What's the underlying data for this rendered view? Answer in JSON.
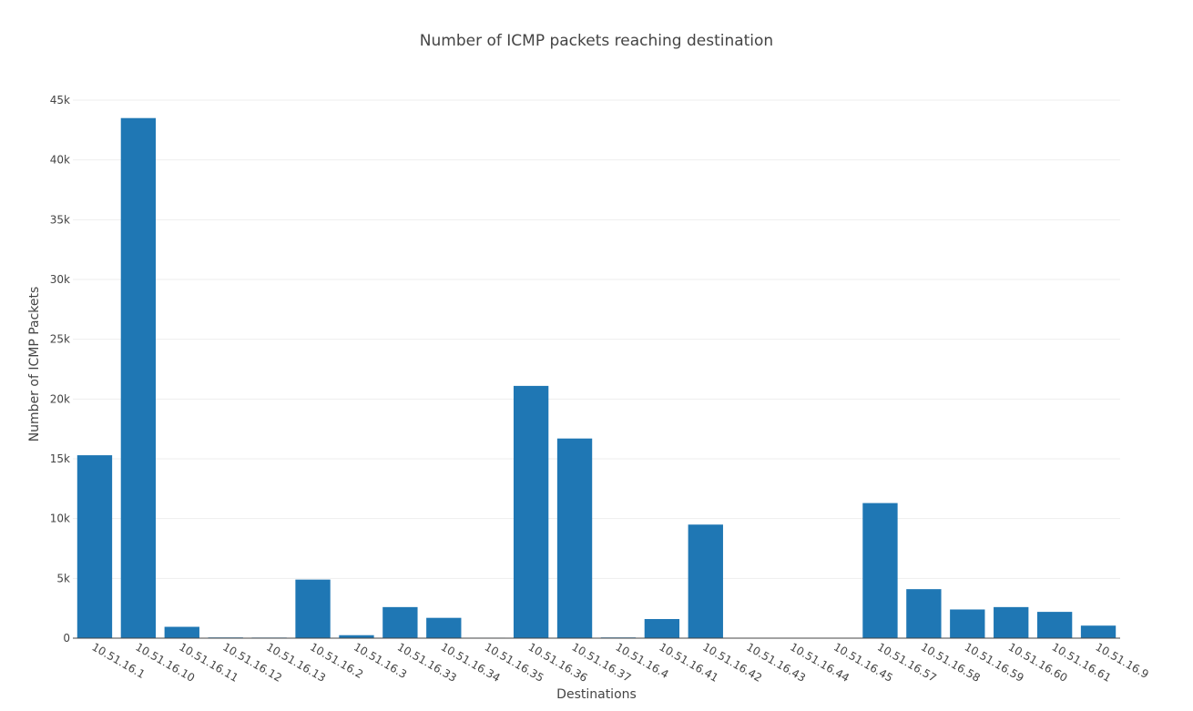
{
  "chart_data": {
    "type": "bar",
    "title": "Number of ICMP packets reaching destination",
    "xlabel": "Destinations",
    "ylabel": "Number of ICMP Packets",
    "categories": [
      "10.51.16.1",
      "10.51.16.10",
      "10.51.16.11",
      "10.51.16.12",
      "10.51.16.13",
      "10.51.16.2",
      "10.51.16.3",
      "10.51.16.33",
      "10.51.16.34",
      "10.51.16.35",
      "10.51.16.36",
      "10.51.16.37",
      "10.51.16.4",
      "10.51.16.41",
      "10.51.16.42",
      "10.51.16.43",
      "10.51.16.44",
      "10.51.16.45",
      "10.51.16.57",
      "10.51.16.58",
      "10.51.16.59",
      "10.51.16.60",
      "10.51.16.61",
      "10.51.16.9"
    ],
    "values": [
      15300,
      43500,
      950,
      60,
      50,
      4900,
      250,
      2600,
      1700,
      40,
      21100,
      16700,
      60,
      1600,
      9500,
      30,
      30,
      30,
      11300,
      4100,
      2400,
      2600,
      2200,
      1050
    ],
    "ylim": [
      0,
      45000
    ],
    "yticks": [
      0,
      5000,
      10000,
      15000,
      20000,
      25000,
      30000,
      35000,
      40000,
      45000
    ],
    "ytick_labels": [
      "0",
      "5k",
      "10k",
      "15k",
      "20k",
      "25k",
      "30k",
      "35k",
      "40k",
      "45k"
    ],
    "bar_color": "#1f77b4",
    "grid": true,
    "legend": "none"
  }
}
